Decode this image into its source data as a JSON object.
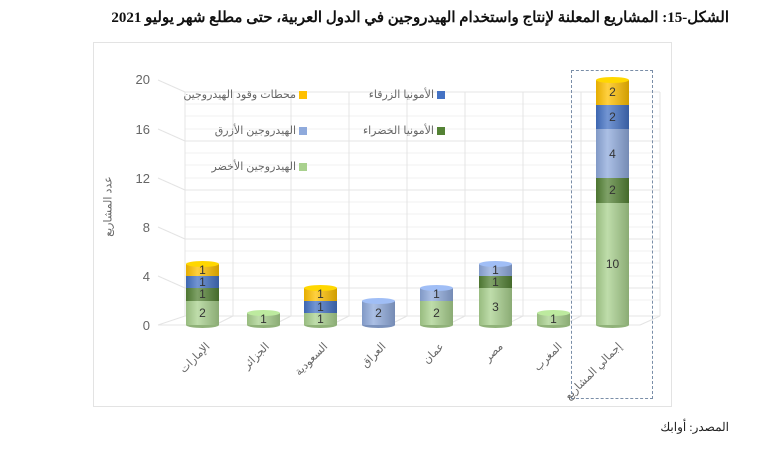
{
  "title": "الشكل-15: المشاريع المعلنة لإنتاج واستخدام الهيدروجين في الدول العربية، حتى مطلع شهر يوليو 2021",
  "source": "المصدر: أوابك",
  "chart_data": {
    "type": "bar",
    "stacked": true,
    "style": "3d-cylinder",
    "title": "الشكل-15: المشاريع المعلنة لإنتاج واستخدام الهيدروجين في الدول العربية، حتى مطلع شهر يوليو 2021",
    "xlabel": "",
    "ylabel": "عدد المشاريع",
    "ylim": [
      0,
      20
    ],
    "yticks": [
      0,
      4,
      8,
      12,
      16,
      20
    ],
    "grid": true,
    "legend_position": "top-left inside plot",
    "categories": [
      "الإمارات",
      "الجزائر",
      "السعودية",
      "العراق",
      "عمان",
      "مصر",
      "المغرب",
      "إجمالي المشاريع"
    ],
    "series": [
      {
        "name": "الهيدروجين الأخضر",
        "color": "#a9d18e",
        "values": [
          2,
          1,
          1,
          0,
          2,
          3,
          1,
          10
        ]
      },
      {
        "name": "الأمونيا الخضراء",
        "color": "#548235",
        "values": [
          1,
          0,
          0,
          0,
          0,
          1,
          0,
          2
        ]
      },
      {
        "name": "الهيدروجين الأزرق",
        "color": "#8faadc",
        "values": [
          0,
          0,
          0,
          2,
          1,
          1,
          0,
          4
        ]
      },
      {
        "name": "الأمونيا الزرقاء",
        "color": "#4472c4",
        "values": [
          1,
          0,
          1,
          0,
          0,
          0,
          0,
          2
        ]
      },
      {
        "name": "محطات وقود الهيدروجين",
        "color": "#ffc000",
        "values": [
          1,
          0,
          1,
          0,
          0,
          0,
          0,
          2
        ]
      }
    ],
    "totals": [
      5,
      1,
      3,
      2,
      3,
      5,
      1,
      20
    ],
    "annotations": [
      "dashed box highlighting إجمالي المشاريع column"
    ]
  },
  "legend": [
    {
      "label": "محطات وقود الهيدروجين",
      "color": "#ffc000"
    },
    {
      "label": "الأمونيا  الزرقاء",
      "color": "#4472c4"
    },
    {
      "label": "الهيدروجين الأزرق",
      "color": "#8faadc"
    },
    {
      "label": "الأمونيا الخضراء",
      "color": "#548235"
    },
    {
      "label": "الهيدروجين الأخضر",
      "color": "#a9d18e"
    }
  ],
  "yaxis": {
    "label": "عدد المشاريع",
    "ticks": [
      "0",
      "4",
      "8",
      "12",
      "16",
      "20"
    ]
  },
  "xaxis": {
    "labels": [
      "الإمارات",
      "الجزائر",
      "السعودية",
      "العراق",
      "عمان",
      "مصر",
      "المغرب",
      "إجمالي المشاريع"
    ]
  }
}
